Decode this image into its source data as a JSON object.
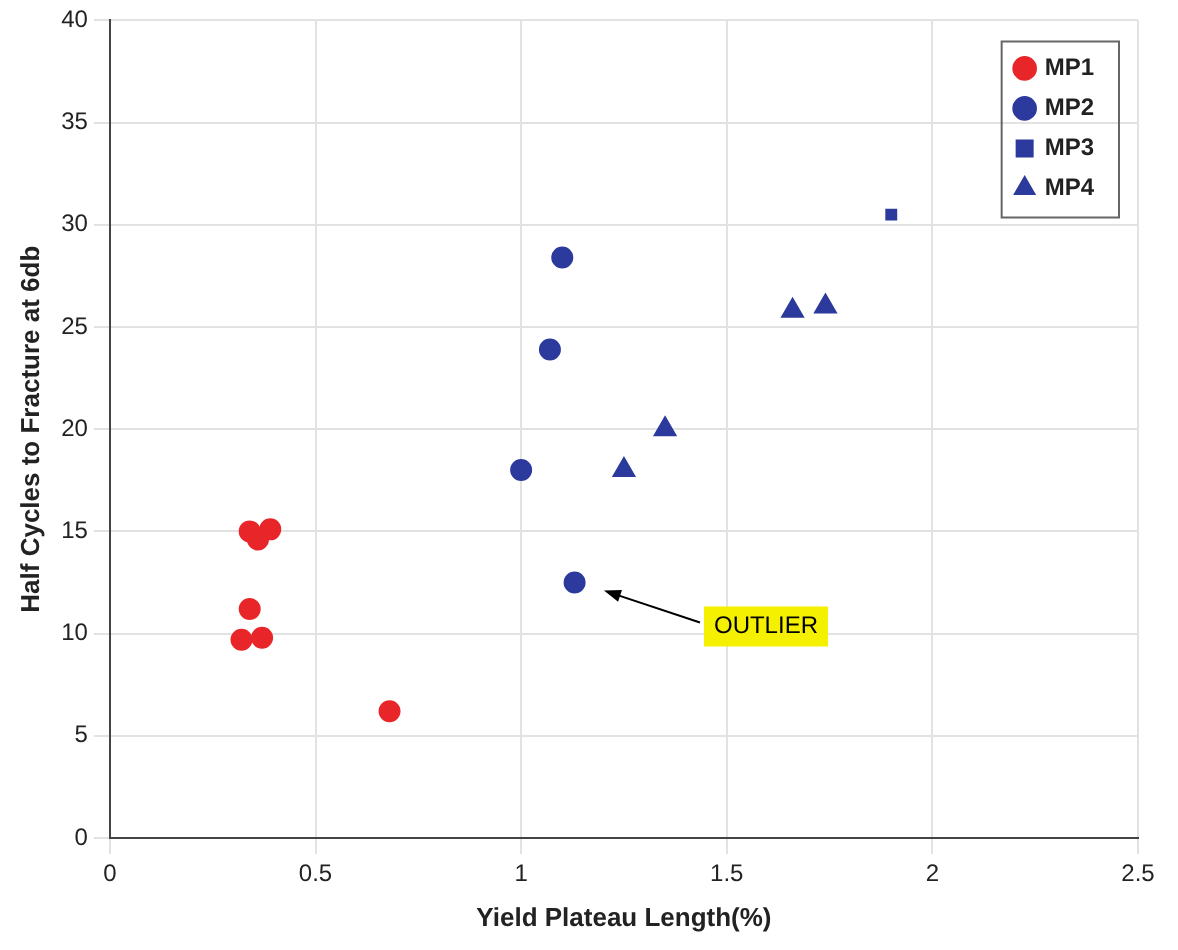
{
  "chart_data": {
    "type": "scatter",
    "xlabel": "Yield Plateau Length(%)",
    "ylabel": "Half Cycles to Fracture at 6db",
    "xlim": [
      0,
      2.5
    ],
    "xticks": [
      0,
      0.5,
      1,
      1.5,
      2,
      2.5
    ],
    "ylim": [
      0,
      40
    ],
    "yticks": [
      0,
      5,
      10,
      15,
      20,
      25,
      30,
      35,
      40
    ],
    "grid": true,
    "legend": "top right",
    "series": [
      {
        "name": "MP1",
        "color": "#e8262a",
        "marker": "circle",
        "x": [
          0.34,
          0.36,
          0.39,
          0.34,
          0.32,
          0.37,
          0.68
        ],
        "values": [
          15,
          14.6,
          15.1,
          11.2,
          9.7,
          9.8,
          6.2
        ]
      },
      {
        "name": "MP2",
        "color": "#2b3a9c",
        "marker": "circle",
        "x": [
          1.0,
          1.07,
          1.1,
          1.13
        ],
        "values": [
          18,
          23.9,
          28.4,
          12.5
        ]
      },
      {
        "name": "MP3",
        "color": "#2b3a9c",
        "marker": "square",
        "x": [
          1.9
        ],
        "values": [
          30.5
        ]
      },
      {
        "name": "MP4",
        "color": "#2b3a9c",
        "marker": "triangle",
        "x": [
          1.25,
          1.35,
          1.66,
          1.74
        ],
        "values": [
          18,
          20,
          25.8,
          26
        ]
      }
    ],
    "annotations": [
      "OUTLIER"
    ]
  }
}
